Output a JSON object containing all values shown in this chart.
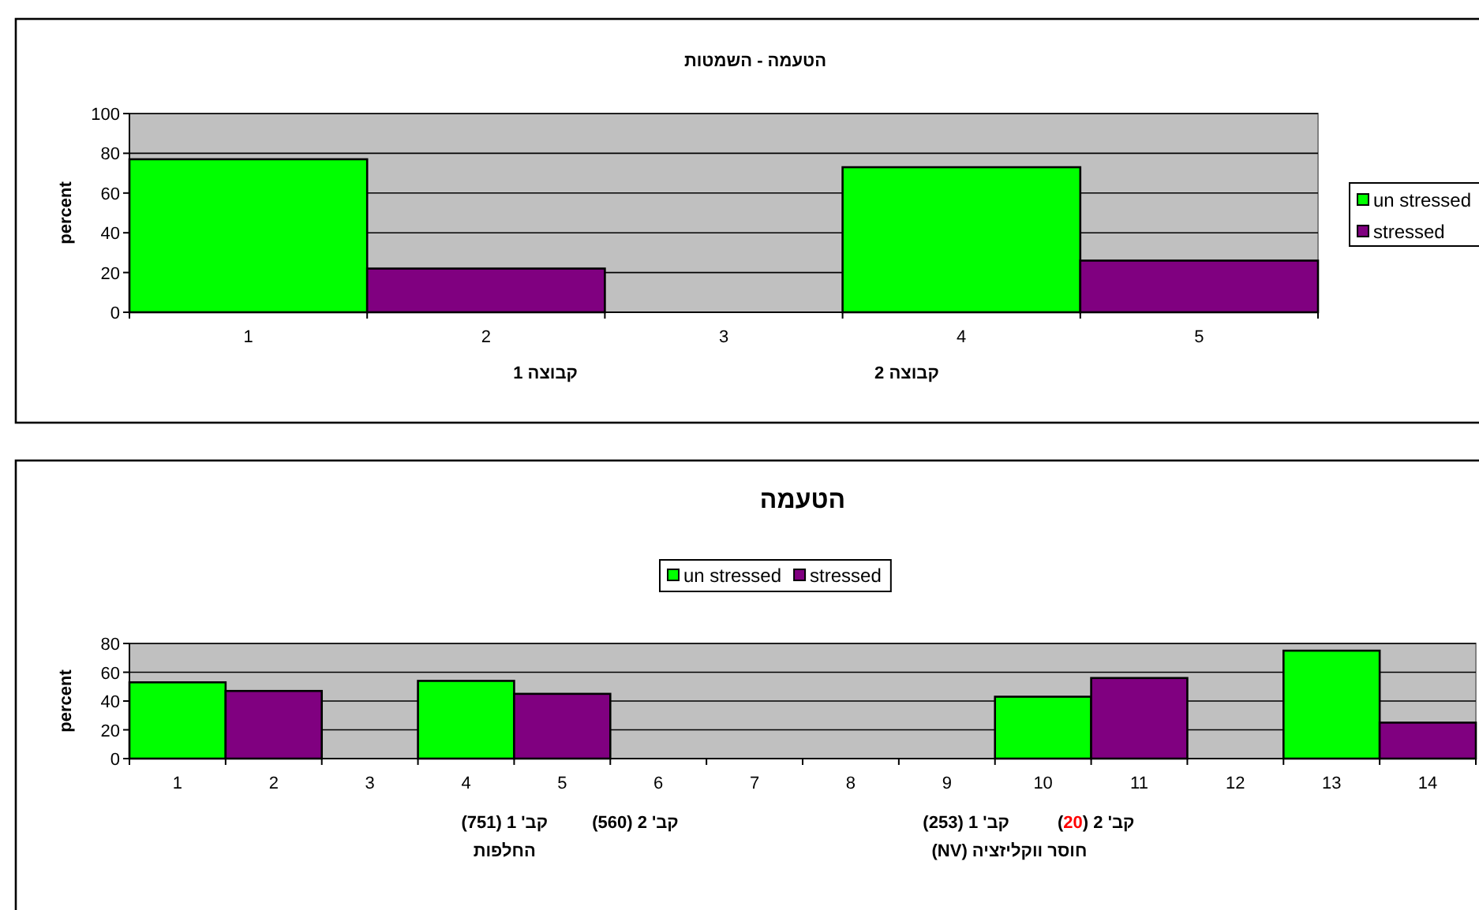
{
  "chart_data": [
    {
      "type": "bar",
      "title": "הטעמה - השמטות",
      "ylabel": "percent",
      "categories": [
        "1",
        "2",
        "3",
        "4",
        "5"
      ],
      "series": [
        {
          "name": "un stressed",
          "color": "#00ff00",
          "values": [
            77,
            null,
            null,
            73,
            null
          ]
        },
        {
          "name": "stressed",
          "color": "#800080",
          "values": [
            null,
            22,
            null,
            null,
            26
          ]
        }
      ],
      "ylim": [
        0,
        100
      ],
      "yticks": [
        0,
        20,
        40,
        60,
        80,
        100
      ],
      "grid": "y",
      "legend": "right",
      "annotations": [
        "קבוצה 1",
        "קבוצה 2"
      ]
    },
    {
      "type": "bar",
      "title": "הטעמה",
      "ylabel": "percent",
      "categories": [
        "1",
        "2",
        "3",
        "4",
        "5",
        "6",
        "7",
        "8",
        "9",
        "10",
        "11",
        "12",
        "13",
        "14"
      ],
      "series": [
        {
          "name": "un stressed",
          "color": "#00ff00",
          "values": [
            53,
            null,
            null,
            54,
            null,
            null,
            null,
            null,
            null,
            43,
            null,
            null,
            75,
            null
          ]
        },
        {
          "name": "stressed",
          "color": "#800080",
          "values": [
            null,
            47,
            null,
            null,
            45,
            null,
            null,
            null,
            null,
            null,
            56,
            null,
            null,
            25
          ]
        }
      ],
      "ylim": [
        0,
        80
      ],
      "yticks": [
        0,
        20,
        40,
        60,
        80
      ],
      "grid": "y",
      "legend": "top",
      "annotations": [
        "קב' 1 (751)",
        "קב' 2 (560)",
        "החלפות",
        "קב' 1 (253)",
        "קב' 2 (20)",
        "חוסר ווקליזציה (NV)"
      ]
    }
  ]
}
